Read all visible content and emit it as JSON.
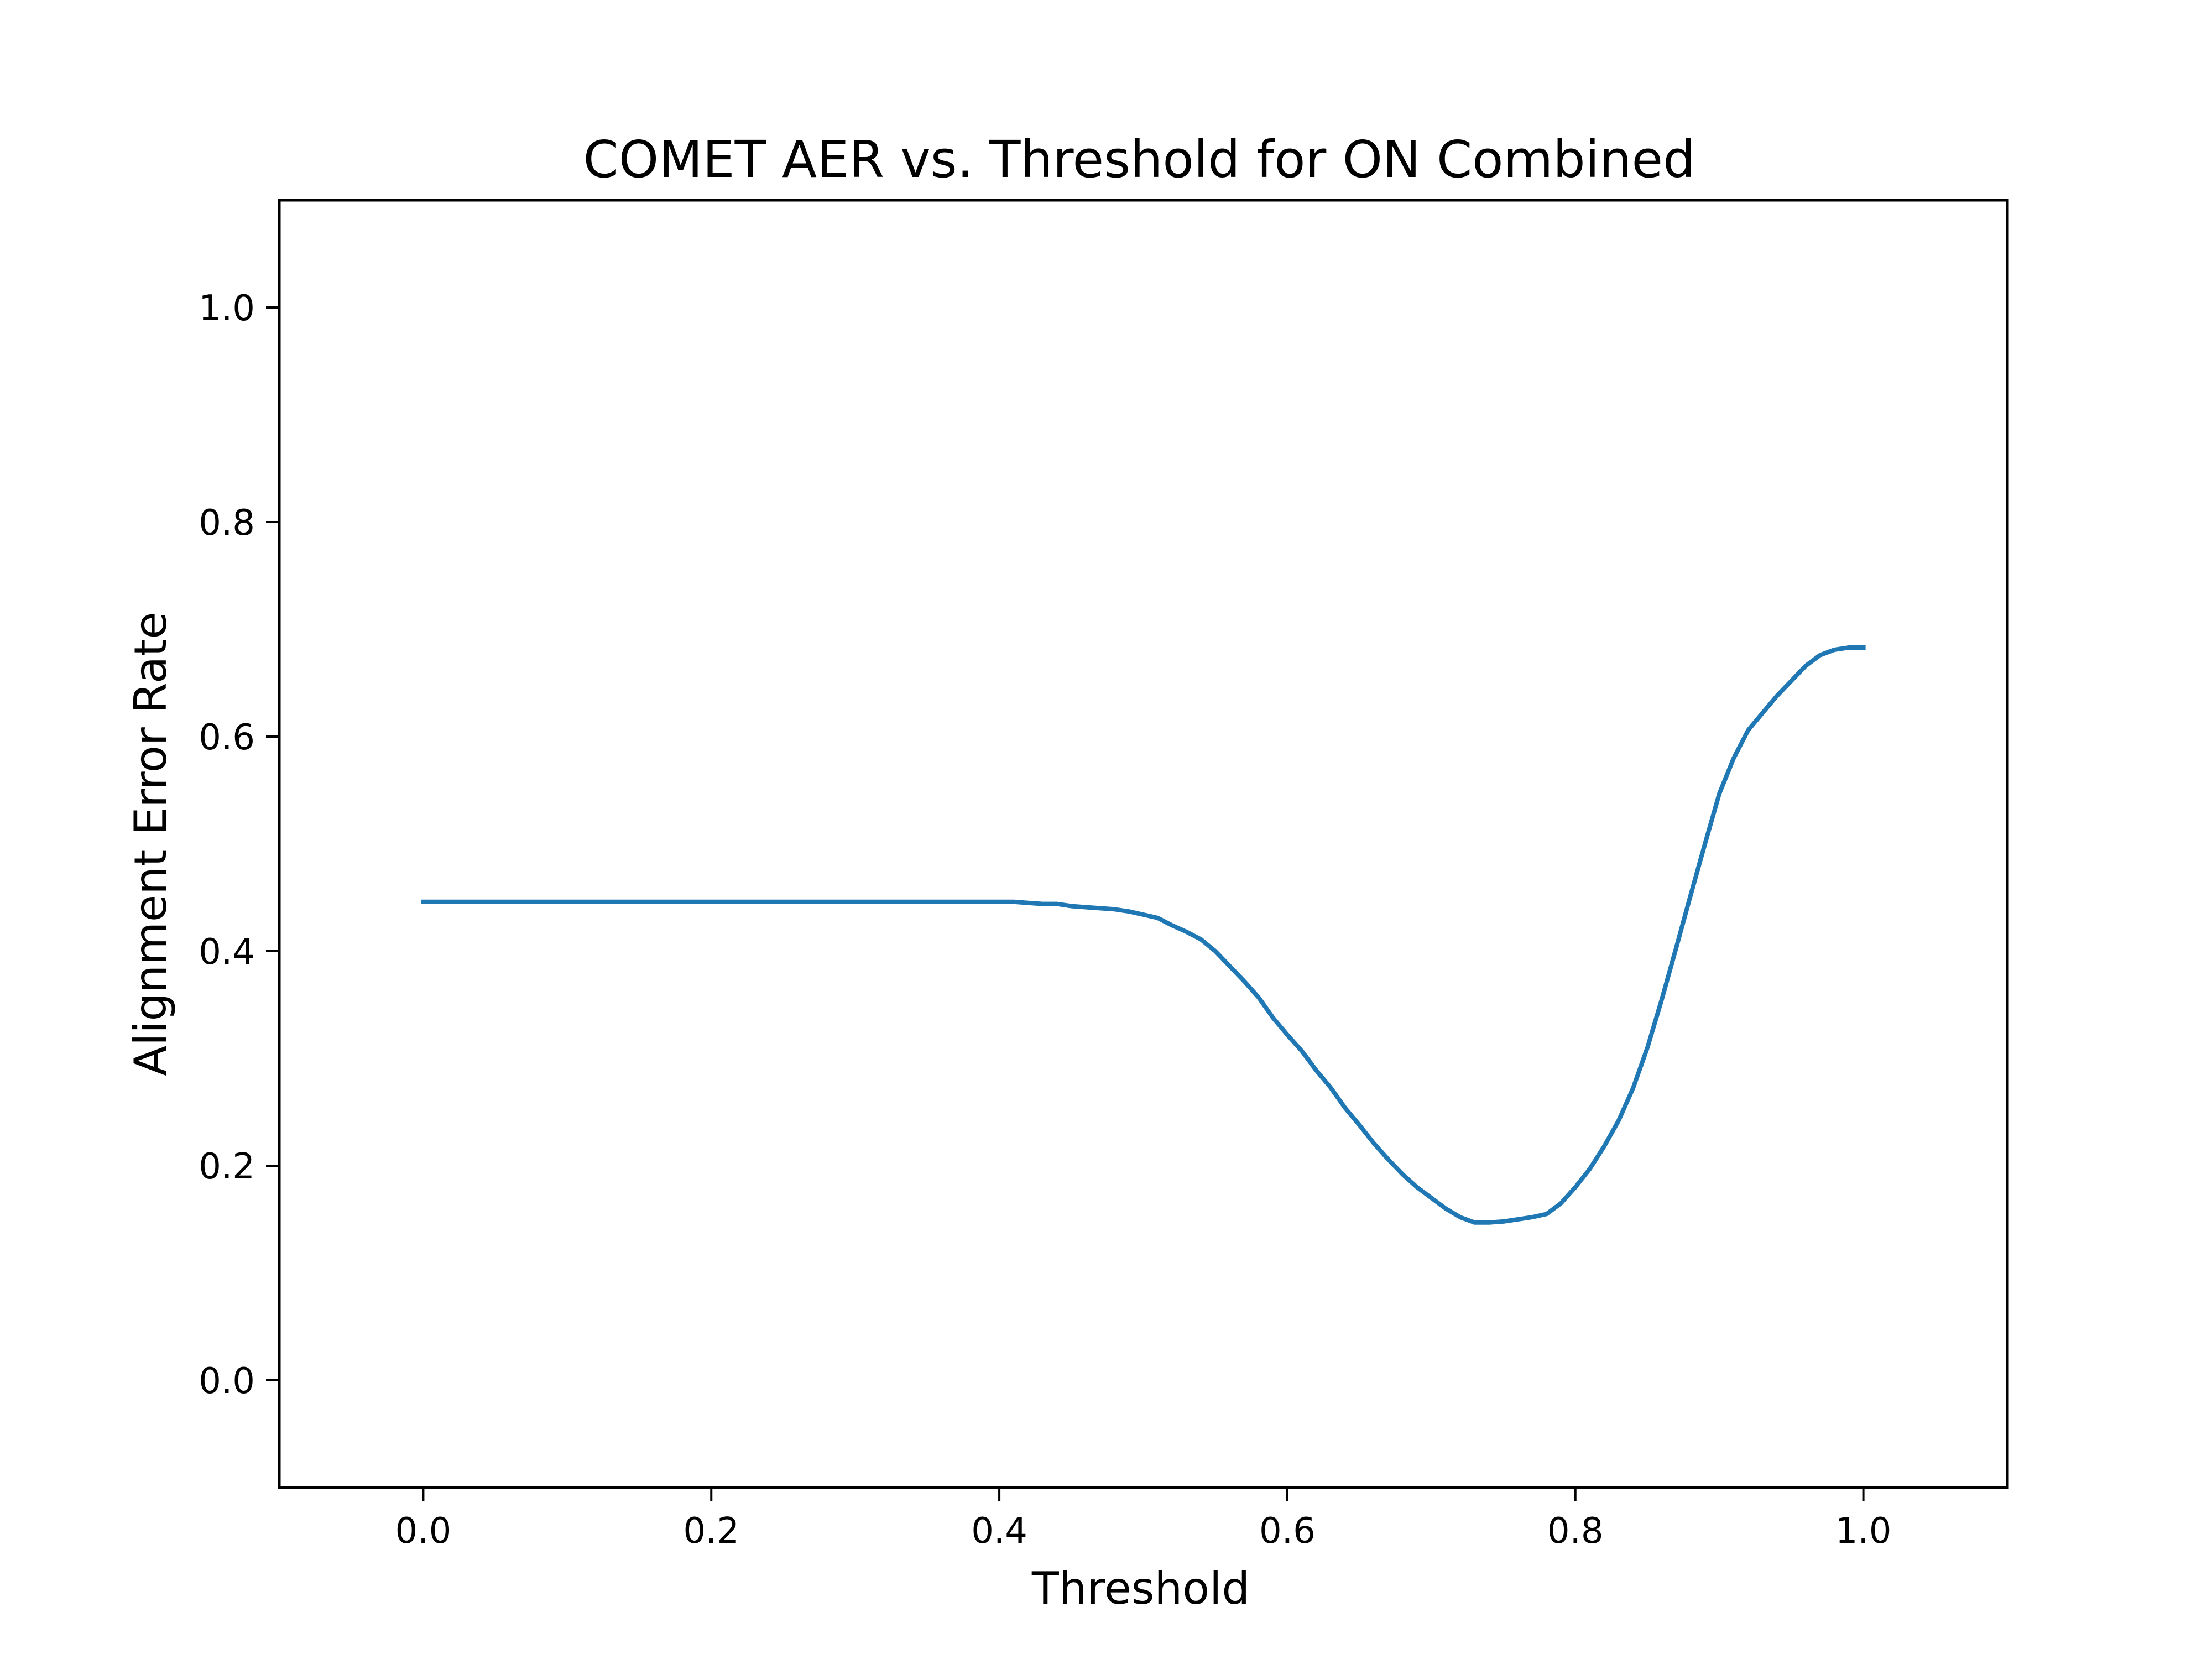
{
  "chart_data": {
    "type": "line",
    "title": "COMET AER vs. Threshold for ON Combined",
    "xlabel": "Threshold",
    "ylabel": "Alignment Error Rate",
    "xlim": [
      -0.1,
      1.1
    ],
    "ylim": [
      -0.1,
      1.1
    ],
    "xticks": [
      "0.0",
      "0.2",
      "0.4",
      "0.6",
      "0.8",
      "1.0"
    ],
    "yticks": [
      "0.0",
      "0.2",
      "0.4",
      "0.6",
      "0.8",
      "1.0"
    ],
    "grid": false,
    "legend": "none",
    "series_color": "#1f77b4",
    "series": [
      {
        "x": [
          0.0,
          0.05,
          0.1,
          0.15,
          0.2,
          0.25,
          0.3,
          0.35,
          0.4,
          0.41,
          0.42,
          0.43,
          0.44,
          0.45,
          0.46,
          0.47,
          0.48,
          0.49,
          0.5,
          0.51,
          0.52,
          0.53,
          0.54,
          0.55,
          0.56,
          0.57,
          0.58,
          0.59,
          0.6,
          0.61,
          0.62,
          0.63,
          0.64,
          0.65,
          0.66,
          0.67,
          0.68,
          0.69,
          0.7,
          0.71,
          0.72,
          0.73,
          0.74,
          0.75,
          0.76,
          0.77,
          0.78,
          0.79,
          0.8,
          0.81,
          0.82,
          0.83,
          0.84,
          0.85,
          0.86,
          0.87,
          0.88,
          0.89,
          0.9,
          0.91,
          0.92,
          0.93,
          0.94,
          0.95,
          0.96,
          0.97,
          0.98,
          0.99,
          1.0
        ],
        "y": [
          0.446,
          0.446,
          0.446,
          0.446,
          0.446,
          0.446,
          0.446,
          0.446,
          0.446,
          0.446,
          0.445,
          0.444,
          0.444,
          0.442,
          0.441,
          0.44,
          0.439,
          0.437,
          0.434,
          0.431,
          0.424,
          0.418,
          0.411,
          0.4,
          0.386,
          0.372,
          0.357,
          0.338,
          0.322,
          0.307,
          0.289,
          0.273,
          0.254,
          0.238,
          0.221,
          0.206,
          0.192,
          0.18,
          0.17,
          0.16,
          0.152,
          0.147,
          0.147,
          0.148,
          0.15,
          0.152,
          0.155,
          0.165,
          0.18,
          0.197,
          0.218,
          0.242,
          0.272,
          0.31,
          0.355,
          0.403,
          0.452,
          0.5,
          0.547,
          0.58,
          0.606,
          0.622,
          0.638,
          0.652,
          0.666,
          0.676,
          0.681,
          0.683,
          0.683
        ]
      }
    ]
  }
}
